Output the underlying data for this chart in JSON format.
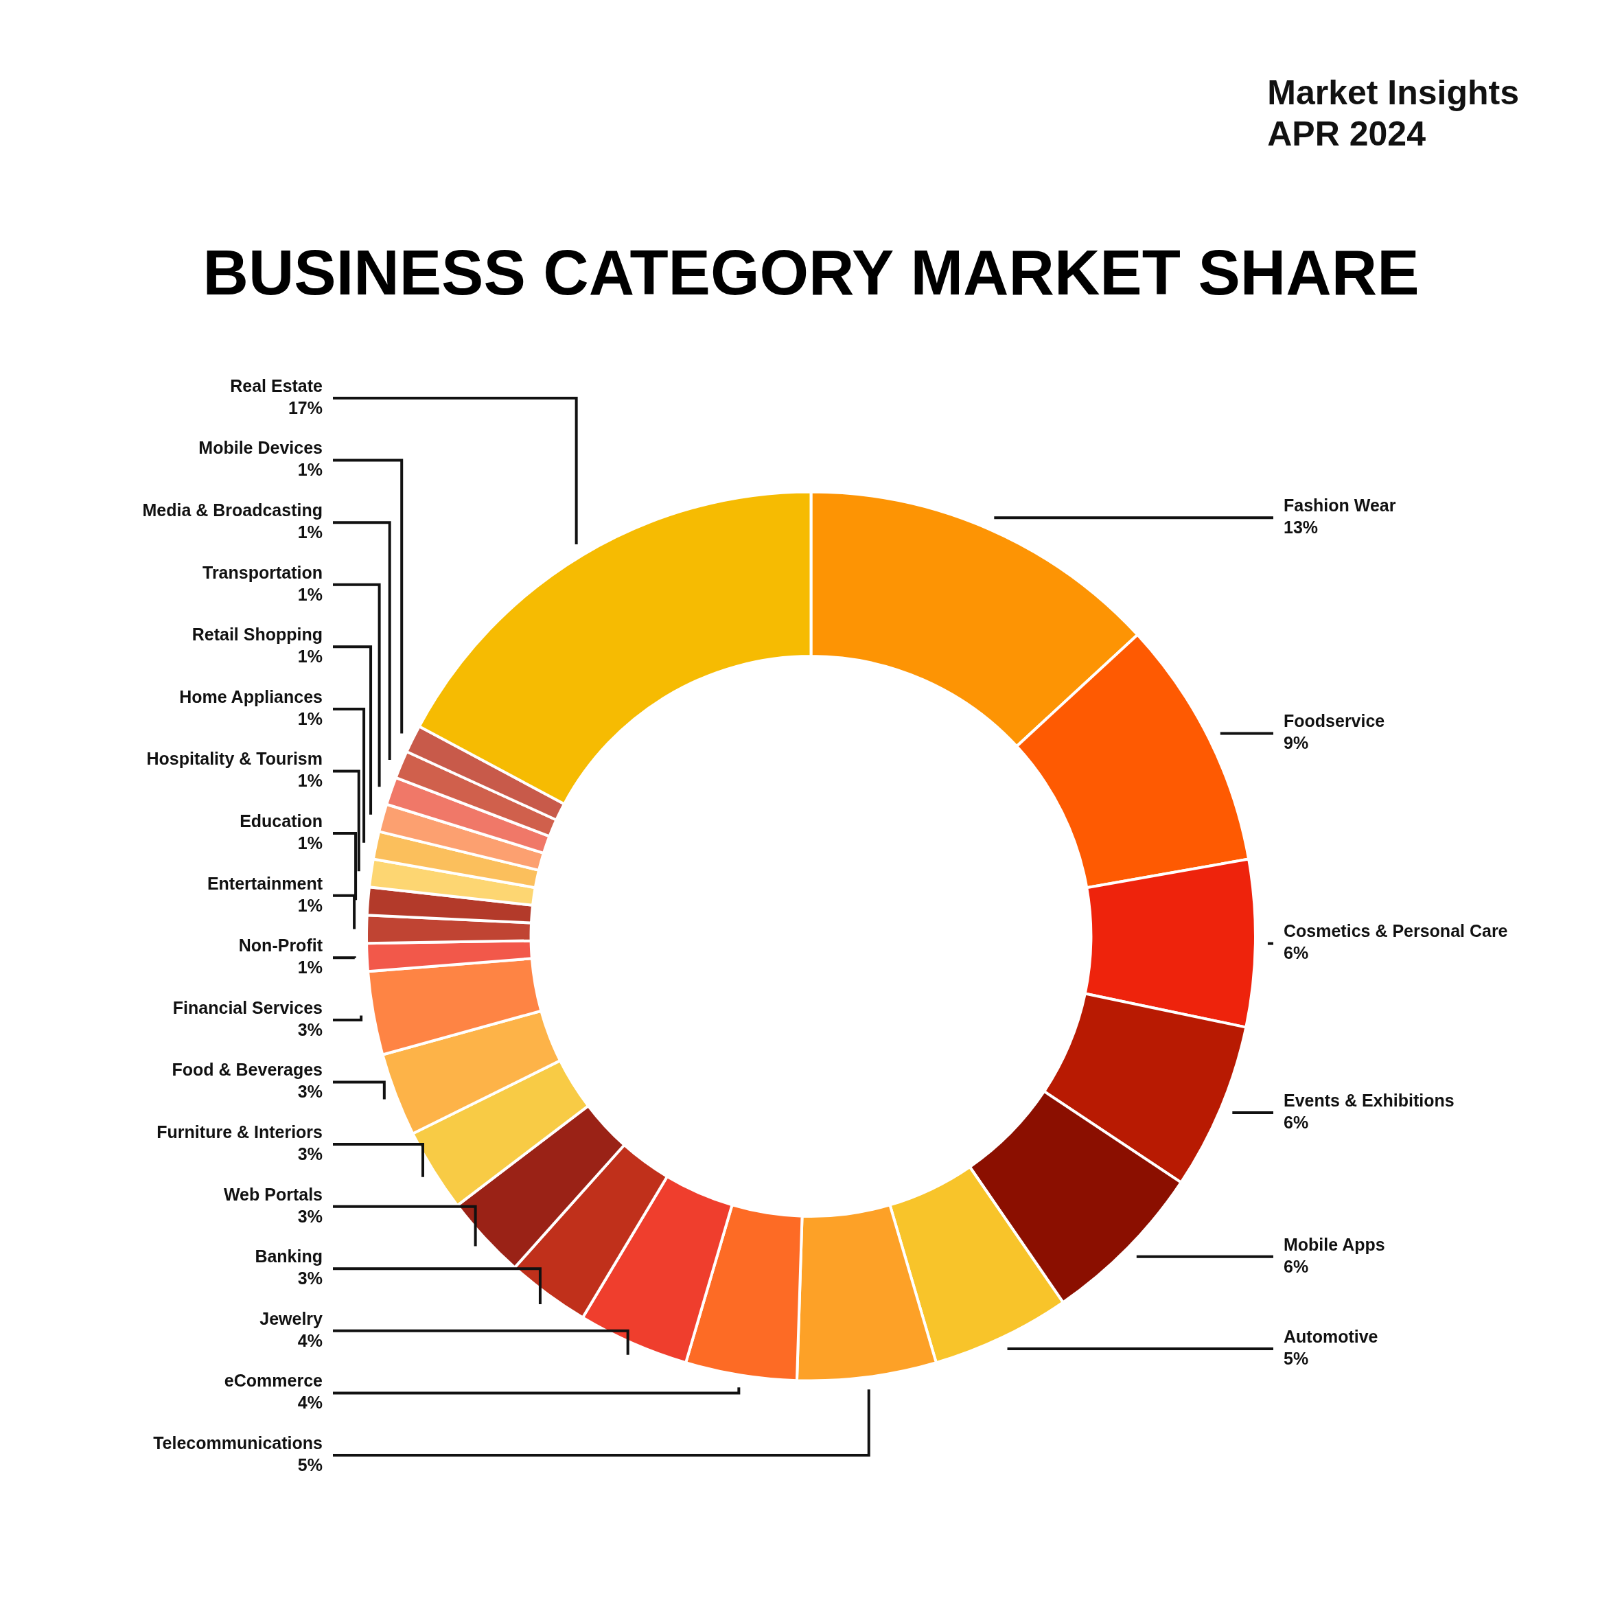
{
  "chart_data": {
    "type": "donut",
    "title": "BUSINESS CATEGORY MARKET SHARE",
    "subtitle": "Market Insights\nAPR 2024",
    "categories": [
      "Fashion Wear",
      "Foodservice",
      "Cosmetics & Personal Care",
      "Events & Exhibitions",
      "Mobile Apps",
      "Automotive",
      "Telecommunications",
      "eCommerce",
      "Jewelry",
      "Banking",
      "Web Portals",
      "Furniture & Interiors",
      "Food & Beverages",
      "Financial Services",
      "Non-Profit",
      "Entertainment",
      "Education",
      "Hospitality & Tourism",
      "Home Appliances",
      "Retail Shopping",
      "Transportation",
      "Media & Broadcasting",
      "Mobile Devices",
      "Real Estate"
    ],
    "values": [
      13,
      9,
      6,
      6,
      6,
      5,
      5,
      4,
      4,
      3,
      3,
      3,
      3,
      3,
      1,
      1,
      1,
      1,
      1,
      1,
      1,
      1,
      1,
      17
    ],
    "value_labels": [
      "13%",
      "9%",
      "6%",
      "6%",
      "6%",
      "5%",
      "5%",
      "4%",
      "4%",
      "3%",
      "3%",
      "3%",
      "3%",
      "3%",
      "1%",
      "1%",
      "1%",
      "1%",
      "1%",
      "1%",
      "1%",
      "1%",
      "1%",
      "17%"
    ],
    "colors": [
      "#fd9404",
      "#fe5a02",
      "#ee230c",
      "#b81a02",
      "#8b0f00",
      "#f8c42a",
      "#fda127",
      "#fd6b25",
      "#ef3e2d",
      "#c0301b",
      "#9a2216",
      "#f8cb45",
      "#fdb348",
      "#fe8444",
      "#f2584a",
      "#c04433",
      "#b33a2a",
      "#fdd672",
      "#fbbf5c",
      "#fca070",
      "#f07868",
      "#d0604c",
      "#c85a4a",
      "#f6bb02"
    ],
    "legend": false
  }
}
